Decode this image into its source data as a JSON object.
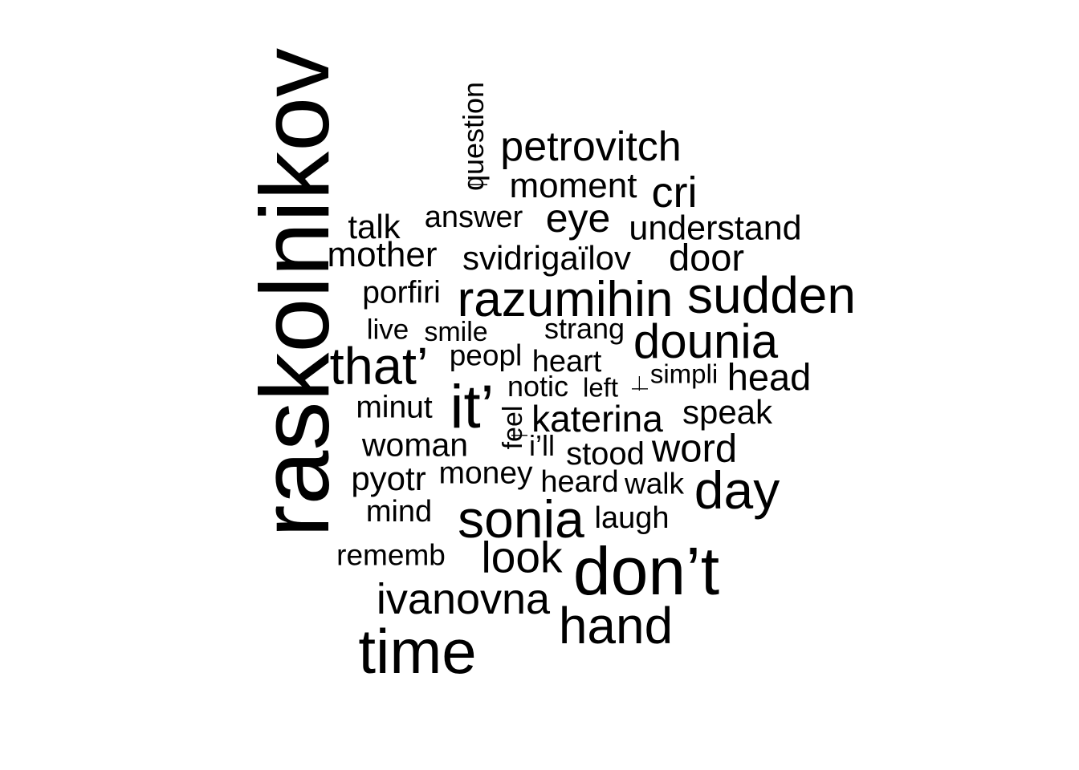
{
  "words": [
    {
      "text": "raskolnikov"
    },
    {
      "text": "question"
    },
    {
      "text": "petrovitch"
    },
    {
      "text": "moment"
    },
    {
      "text": "cri"
    },
    {
      "text": "talk"
    },
    {
      "text": "answer"
    },
    {
      "text": "eye"
    },
    {
      "text": "understand"
    },
    {
      "text": "mother"
    },
    {
      "text": "svidrigaïlov"
    },
    {
      "text": "door"
    },
    {
      "text": "porfiri"
    },
    {
      "text": "razumihin"
    },
    {
      "text": "sudden"
    },
    {
      "text": "live"
    },
    {
      "text": "smile"
    },
    {
      "text": "strang"
    },
    {
      "text": "dounia"
    },
    {
      "text": "that’"
    },
    {
      "text": "peopl"
    },
    {
      "text": "heart"
    },
    {
      "text": "notic"
    },
    {
      "text": "left"
    },
    {
      "text": "simpli"
    },
    {
      "text": "head"
    },
    {
      "text": "it’"
    },
    {
      "text": "minut"
    },
    {
      "text": "feel"
    },
    {
      "text": "katerina"
    },
    {
      "text": "speak"
    },
    {
      "text": "woman"
    },
    {
      "text": "i’ll"
    },
    {
      "text": "stood"
    },
    {
      "text": "word"
    },
    {
      "text": "pyotr"
    },
    {
      "text": "money"
    },
    {
      "text": "heard"
    },
    {
      "text": "walk"
    },
    {
      "text": "day"
    },
    {
      "text": "mind"
    },
    {
      "text": "sonia"
    },
    {
      "text": "laugh"
    },
    {
      "text": "rememb"
    },
    {
      "text": "look"
    },
    {
      "text": "don’t"
    },
    {
      "text": "ivanovna"
    },
    {
      "text": "hand"
    },
    {
      "text": "time"
    },
    {
      "text": "—"
    },
    {
      "text": "—"
    },
    {
      "text": "—"
    },
    {
      "text": "—"
    }
  ]
}
